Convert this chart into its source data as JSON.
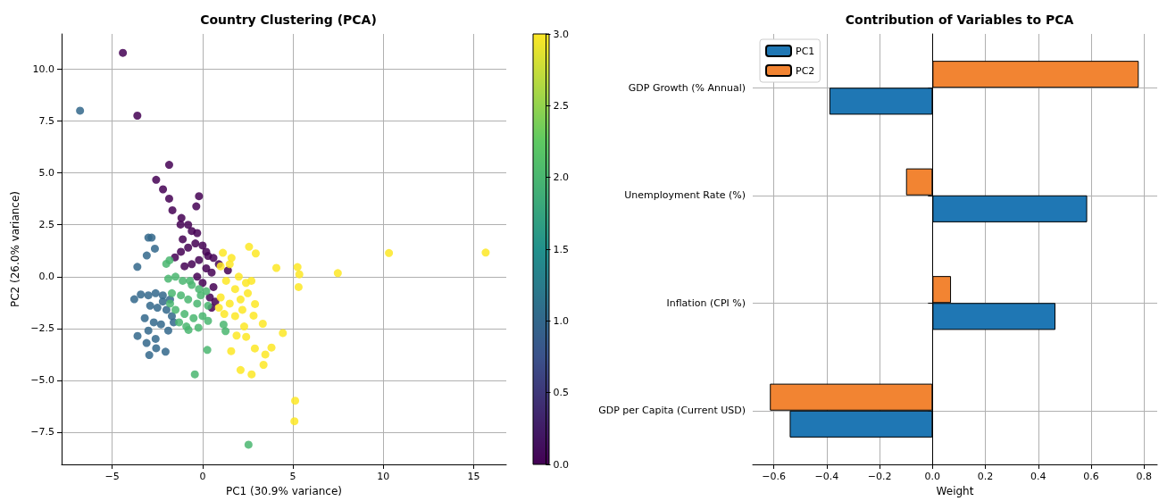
{
  "chart_data": [
    {
      "type": "scatter",
      "title": "Country Clustering (PCA)",
      "xlabel": "PC1 (30.9% variance)",
      "ylabel": "PC2 (26.0% variance)",
      "grid": true,
      "marker": "circle",
      "x": [
        -4.41,
        -3.61,
        -1.85,
        -2.57,
        -2.19,
        -1.85,
        -1.67,
        -0.2,
        -0.35,
        -1.17,
        -1.22,
        -1.53,
        -1.1,
        -0.6,
        -0.3,
        -1.2,
        -0.8,
        -0.4,
        0,
        0.3,
        0.6,
        0.9,
        -1,
        -0.6,
        -0.2,
        0.2,
        0.5,
        0.6,
        0.4,
        0.7,
        -0.3,
        0,
        1.4,
        -0.8,
        0.2,
        0.5,
        -6.78,
        -3,
        -2.82,
        -2.64,
        -3.09,
        -3.61,
        -3.78,
        -3.42,
        -3.6,
        -2.95,
        -2.05,
        -2.57,
        -3,
        -2.6,
        -2.2,
        -1.8,
        -2.9,
        -2.5,
        -2,
        -1.7,
        -3.2,
        -2.7,
        -2.3,
        -1.9,
        -3,
        -2.6,
        -3.1,
        -2.2,
        -1.6,
        -2.01,
        -1.83,
        -0.43,
        0.26,
        2.54,
        1.16,
        1.27,
        -0.78,
        -0.23,
        0.3,
        -1.9,
        -1.5,
        -1.1,
        -0.6,
        -0.2,
        0.2,
        -1.7,
        -1.2,
        -0.8,
        -0.3,
        0.3,
        -1.5,
        -1,
        -0.5,
        0,
        -1.3,
        -0.9,
        -0.1,
        -0.7,
        -1.8,
        2.57,
        2.94,
        4.08,
        5.25,
        5.35,
        5.31,
        7.48,
        10.31,
        15.66,
        2.9,
        2.82,
        3.33,
        4.44,
        1.58,
        2.89,
        3.47,
        3.81,
        3.37,
        2.1,
        2.71,
        5.12,
        5.08,
        1.88,
        2.41,
        1.12,
        1,
        1.5,
        2,
        2.4,
        1.3,
        1.8,
        1,
        1.5,
        2.1,
        1.2,
        1.8,
        2.5,
        2.7,
        1.6,
        0.9,
        2.2,
        2.3
      ],
      "values": [
        10.79,
        7.76,
        5.39,
        4.67,
        4.21,
        3.76,
        3.2,
        3.88,
        3.39,
        2.83,
        2.51,
        0.93,
        1.8,
        2.2,
        2.1,
        1.2,
        1.4,
        1.6,
        1.5,
        1,
        0.9,
        0.6,
        0.5,
        0.6,
        0.8,
        0.4,
        0.2,
        -0.5,
        -1,
        -1.2,
        0,
        -0.3,
        0.3,
        2.5,
        1.2,
        -1.5,
        8,
        1.88,
        1.88,
        1.35,
        1.02,
        0.47,
        -1.09,
        -0.86,
        -2.86,
        -3.78,
        -3.62,
        -3.45,
        -0.9,
        -0.8,
        -0.9,
        -1.1,
        -1.4,
        -1.5,
        -1.6,
        -1.9,
        -2,
        -2.2,
        -2.3,
        -2.6,
        -2.6,
        -3,
        -3.2,
        -1.2,
        -2.2,
        0.62,
        0.79,
        -4.71,
        -3.53,
        -8.1,
        -2.31,
        -2.63,
        -2.57,
        -2.46,
        -2.13,
        -0.1,
        0,
        -0.2,
        -0.4,
        -0.6,
        -0.7,
        -0.8,
        -0.9,
        -1.1,
        -1.3,
        -1.4,
        -1.6,
        -1.8,
        -2,
        -1.9,
        -2.2,
        -2.4,
        -0.9,
        -0.2,
        -1.3,
        1.44,
        1.12,
        0.42,
        0.46,
        0.11,
        -0.5,
        0.17,
        1.14,
        1.16,
        -1.32,
        -1.88,
        -2.27,
        -2.72,
        -3.59,
        -3.46,
        -3.75,
        -3.42,
        -4.25,
        -4.5,
        -4.71,
        -5.98,
        -6.97,
        -2.84,
        -2.9,
        1.15,
        0.5,
        0.6,
        0,
        -0.3,
        -0.2,
        -0.6,
        -1,
        -1.3,
        -1.1,
        -1.8,
        -1.9,
        -0.8,
        -0.2,
        0.9,
        -1.5,
        -1.6,
        -2.4
      ],
      "cvalues": [
        0,
        0,
        0,
        0,
        0,
        0,
        0,
        0,
        0,
        0,
        0,
        0,
        0,
        0,
        0,
        0,
        0,
        0,
        0,
        0,
        0,
        0,
        0,
        0,
        0,
        0,
        0,
        0,
        0,
        0,
        0,
        0,
        0,
        0,
        0,
        0,
        1,
        1,
        1,
        1,
        1,
        1,
        1,
        1,
        1,
        1,
        1,
        1,
        1,
        1,
        1,
        1,
        1,
        1,
        1,
        1,
        1,
        1,
        1,
        1,
        1,
        1,
        1,
        1,
        1,
        2,
        2,
        2,
        2,
        2,
        2,
        2,
        2,
        2,
        2,
        2,
        2,
        2,
        2,
        2,
        2,
        2,
        2,
        2,
        2,
        2,
        2,
        2,
        2,
        2,
        2,
        2,
        2,
        2,
        2,
        3,
        3,
        3,
        3,
        3,
        3,
        3,
        3,
        3,
        3,
        3,
        3,
        3,
        3,
        3,
        3,
        3,
        3,
        3,
        3,
        3,
        3,
        3,
        3,
        3,
        3,
        3,
        3,
        3,
        3,
        3,
        3,
        3,
        3,
        3,
        3,
        3,
        3,
        3,
        3,
        3,
        3
      ],
      "xlim": [
        -7.8,
        16.8
      ],
      "ylim": [
        -9.05,
        11.7
      ],
      "xticks": [
        {
          "value": -5,
          "label": "−5"
        },
        0,
        5,
        10,
        15
      ],
      "yticks": [
        {
          "value": -7.5,
          "label": "−7.5"
        },
        {
          "value": -5,
          "label": "−5.0"
        },
        {
          "value": -2.5,
          "label": "−2.5"
        },
        {
          "value": 0,
          "label": "0.0"
        },
        2.5,
        {
          "value": 5,
          "label": "5.0"
        },
        7.5,
        {
          "value": 10,
          "label": "10.0"
        }
      ],
      "clim": [
        0,
        3
      ],
      "cticks": [
        {
          "value": 0,
          "label": "0.0"
        },
        0.5,
        {
          "value": 1,
          "label": "1.0"
        },
        1.5,
        {
          "value": 2,
          "label": "2.0"
        },
        2.5,
        {
          "value": 3,
          "label": "3.0"
        }
      ]
    },
    {
      "type": "bar",
      "orientation": "horizontal",
      "title": "Contribution of Variables to PCA",
      "xlabel": "Weight",
      "grid": true,
      "legend": "top left",
      "categories": [
        "GDP Growth (% Annual)",
        "Unemployment Rate (%)",
        "Inflation (CPI %)",
        "GDP per Capita (Current USD)"
      ],
      "series": [
        {
          "name": "PC1",
          "color": "#1f77b4",
          "values": [
            -0.39,
            0.585,
            0.465,
            -0.54
          ]
        },
        {
          "name": "PC2",
          "color": "#f28432",
          "values": [
            0.78,
            -0.1,
            0.07,
            -0.615
          ]
        }
      ],
      "xlim": [
        -0.68,
        0.85
      ],
      "xticks": [
        {
          "value": -0.6,
          "label": "−0.6"
        },
        {
          "value": -0.4,
          "label": "−0.4"
        },
        {
          "value": -0.2,
          "label": "−0.2"
        },
        {
          "value": 0,
          "label": "0.0"
        },
        0.2,
        0.4,
        0.6,
        0.8
      ]
    }
  ]
}
